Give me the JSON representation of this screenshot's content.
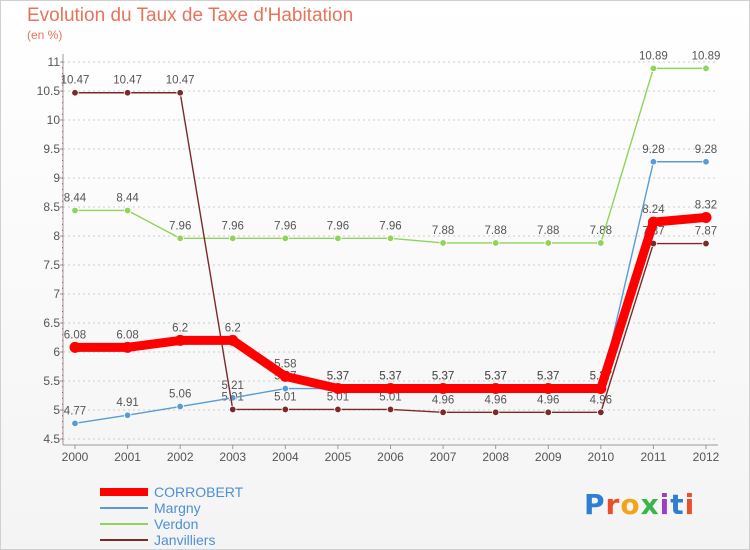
{
  "title": "Evolution du Taux de Taxe d'Habitation",
  "subtitle": "(en %)",
  "logo": {
    "text": "Proxiti",
    "letter_colors": [
      "#2e7fd1",
      "#e84f2a",
      "#f2a51a",
      "#3bb54a",
      "#9a3ec2",
      "#2e7fd1",
      "#e84f2a"
    ]
  },
  "chart_data": {
    "type": "line",
    "title": "Evolution du Taux de Taxe d'Habitation",
    "ylabel": "(en %)",
    "xlabel": "",
    "x": [
      "2000",
      "2001",
      "2002",
      "2003",
      "2004",
      "2005",
      "2006",
      "2007",
      "2008",
      "2009",
      "2010",
      "2011",
      "2012"
    ],
    "ylim": [
      4.5,
      11
    ],
    "yticks": [
      "4.5",
      "5",
      "5.5",
      "6",
      "6.5",
      "7",
      "7.5",
      "8",
      "8.5",
      "9",
      "9.5",
      "10",
      "10.5",
      "11"
    ],
    "grid": "horizontal dashed",
    "legend_position": "bottom-left",
    "series": [
      {
        "name": "CORROBERT",
        "color": "#ff0000",
        "emphasis": "thick",
        "values": [
          6.08,
          6.08,
          6.2,
          6.2,
          5.58,
          5.37,
          5.37,
          5.37,
          5.37,
          5.37,
          5.37,
          8.24,
          8.32
        ],
        "labels": [
          "6.08",
          "6.08",
          "6.2",
          "6.2",
          "5.58",
          "5.37",
          "5.37",
          "5.37",
          "5.37",
          "5.37",
          "5.37",
          "8.24",
          "8.32"
        ]
      },
      {
        "name": "Margny",
        "color": "#5b9bd5",
        "emphasis": "thin",
        "values": [
          4.77,
          4.91,
          5.06,
          5.21,
          5.37,
          5.37,
          5.37,
          5.37,
          5.37,
          5.37,
          5.37,
          9.28,
          9.28
        ],
        "labels": [
          "4.77",
          "4.91",
          "5.06",
          "5.21",
          "5.37",
          "5.37",
          "5.37",
          "5.37",
          "5.37",
          "5.37",
          "5.37",
          "9.28",
          "9.28"
        ]
      },
      {
        "name": "Verdon",
        "color": "#8fd45a",
        "emphasis": "thin",
        "values": [
          8.44,
          8.44,
          7.96,
          7.96,
          7.96,
          7.96,
          7.96,
          7.88,
          7.88,
          7.88,
          7.88,
          10.89,
          10.89
        ],
        "labels": [
          "8.44",
          "8.44",
          "7.96",
          "7.96",
          "7.96",
          "7.96",
          "7.96",
          "7.88",
          "7.88",
          "7.88",
          "7.88",
          "10.89",
          "10.89"
        ]
      },
      {
        "name": "Janvilliers",
        "color": "#7b2a2a",
        "emphasis": "thin",
        "values": [
          10.47,
          10.47,
          10.47,
          5.01,
          5.01,
          5.01,
          5.01,
          4.96,
          4.96,
          4.96,
          4.96,
          7.87,
          7.87
        ],
        "labels": [
          "10.47",
          "10.47",
          "10.47",
          "5.01",
          "5.01",
          "5.01",
          "5.01",
          "4.96",
          "4.96",
          "4.96",
          "4.96",
          "7.87",
          "7.87"
        ]
      }
    ]
  }
}
